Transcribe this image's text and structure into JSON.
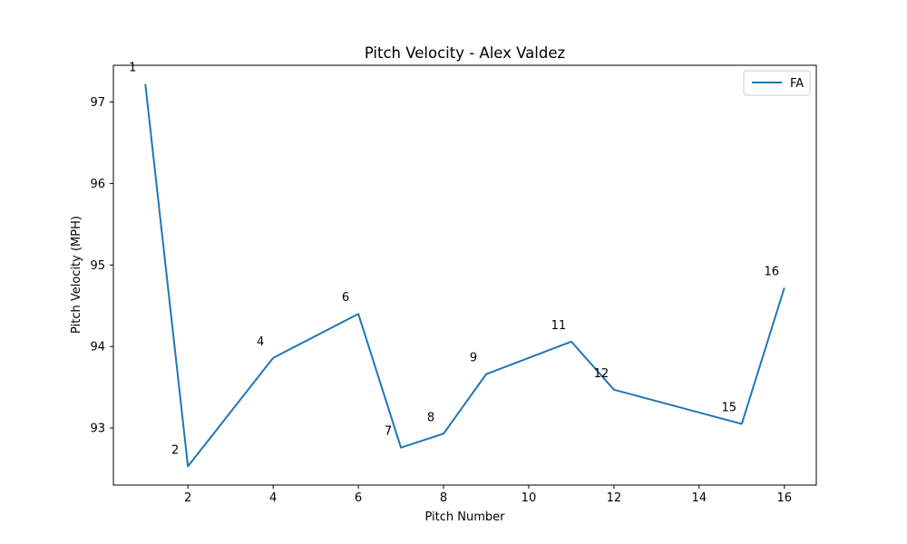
{
  "chart_data": {
    "type": "line",
    "title": "Pitch Velocity - Alex Valdez",
    "xlabel": "Pitch Number",
    "ylabel": "Pitch Velocity (MPH)",
    "xlim": [
      0.25,
      16.75
    ],
    "ylim": [
      92.3,
      97.45
    ],
    "xticks": [
      2,
      4,
      6,
      8,
      10,
      12,
      14,
      16
    ],
    "yticks": [
      93,
      94,
      95,
      96,
      97
    ],
    "grid": false,
    "legend_position": "top-right",
    "series": [
      {
        "name": "FA",
        "color": "#1f77b4",
        "points": [
          {
            "x": 1,
            "y": 97.22,
            "label": "1"
          },
          {
            "x": 2,
            "y": 92.53,
            "label": "2"
          },
          {
            "x": 4,
            "y": 93.86,
            "label": "4"
          },
          {
            "x": 6,
            "y": 94.4,
            "label": "6"
          },
          {
            "x": 7,
            "y": 92.76,
            "label": "7"
          },
          {
            "x": 8,
            "y": 92.93,
            "label": "8"
          },
          {
            "x": 9,
            "y": 93.66,
            "label": "9"
          },
          {
            "x": 11,
            "y": 94.06,
            "label": "11"
          },
          {
            "x": 12,
            "y": 93.47,
            "label": "12"
          },
          {
            "x": 15,
            "y": 93.05,
            "label": "15"
          },
          {
            "x": 16,
            "y": 94.72,
            "label": "16"
          }
        ]
      }
    ]
  }
}
